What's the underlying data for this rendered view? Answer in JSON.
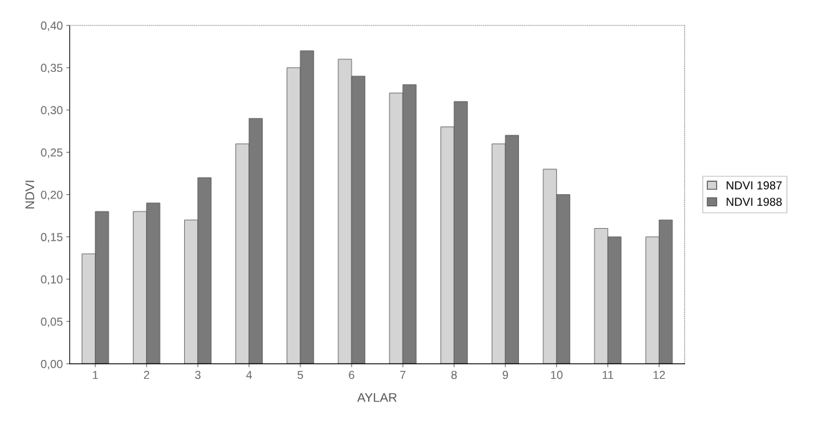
{
  "chart_data": {
    "type": "bar",
    "xlabel": "AYLAR",
    "ylabel": "NDVI",
    "categories": [
      "1",
      "2",
      "3",
      "4",
      "5",
      "6",
      "7",
      "8",
      "9",
      "10",
      "11",
      "12"
    ],
    "series": [
      {
        "name": "NDVI 1987",
        "color": "#d4d4d4",
        "values": [
          0.13,
          0.18,
          0.17,
          0.26,
          0.35,
          0.36,
          0.32,
          0.28,
          0.26,
          0.23,
          0.16,
          0.15
        ]
      },
      {
        "name": "NDVI 1988",
        "color": "#7a7a7a",
        "values": [
          0.18,
          0.19,
          0.22,
          0.29,
          0.37,
          0.34,
          0.33,
          0.31,
          0.27,
          0.2,
          0.15,
          0.17
        ]
      }
    ],
    "ylim": [
      0,
      0.4
    ],
    "yticks": [
      {
        "value": 0,
        "label": "0,00"
      },
      {
        "value": 0.05,
        "label": "0,05"
      },
      {
        "value": 0.1,
        "label": "0,10"
      },
      {
        "value": 0.15,
        "label": "0,15"
      },
      {
        "value": 0.2,
        "label": "0,20"
      },
      {
        "value": 0.25,
        "label": "0,25"
      },
      {
        "value": 0.3,
        "label": "0,30"
      },
      {
        "value": 0.35,
        "label": "0,35"
      },
      {
        "value": 0.4,
        "label": "0,40"
      }
    ],
    "grid": false,
    "legend": "right"
  }
}
